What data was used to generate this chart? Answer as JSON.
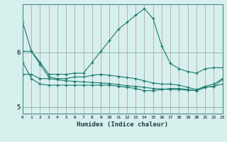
{
  "xlabel": "Humidex (Indice chaleur)",
  "bg_color": "#d6f0ee",
  "line_color": "#1a7a6e",
  "xlim": [
    0,
    23
  ],
  "ylim": [
    4.88,
    6.88
  ],
  "yticks": [
    5,
    6
  ],
  "xticks": [
    0,
    1,
    2,
    3,
    4,
    5,
    6,
    7,
    8,
    9,
    10,
    11,
    12,
    13,
    14,
    15,
    16,
    17,
    18,
    19,
    20,
    21,
    22,
    23
  ],
  "series1_y": [
    6.55,
    6.02,
    5.82,
    5.6,
    5.6,
    5.6,
    5.62,
    5.62,
    5.82,
    6.02,
    6.22,
    6.42,
    6.55,
    6.68,
    6.8,
    6.62,
    6.12,
    5.8,
    5.7,
    5.65,
    5.62,
    5.7,
    5.72,
    5.72
  ],
  "series2_y": [
    6.02,
    6.02,
    5.78,
    5.55,
    5.52,
    5.52,
    5.55,
    5.55,
    5.58,
    5.6,
    5.58,
    5.56,
    5.54,
    5.52,
    5.48,
    5.44,
    5.42,
    5.42,
    5.4,
    5.36,
    5.32,
    5.38,
    5.42,
    5.52
  ],
  "series3_y": [
    5.82,
    5.52,
    5.42,
    5.4,
    5.4,
    5.4,
    5.4,
    5.4,
    5.4,
    5.4,
    5.4,
    5.38,
    5.36,
    5.34,
    5.3,
    5.3,
    5.32,
    5.34,
    5.34,
    5.32,
    5.3,
    5.36,
    5.38,
    5.42
  ],
  "series4_y": [
    5.6,
    5.6,
    5.52,
    5.52,
    5.5,
    5.48,
    5.47,
    5.46,
    5.45,
    5.44,
    5.43,
    5.41,
    5.39,
    5.38,
    5.36,
    5.34,
    5.33,
    5.32,
    5.32,
    5.31,
    5.3,
    5.36,
    5.38,
    5.5
  ]
}
